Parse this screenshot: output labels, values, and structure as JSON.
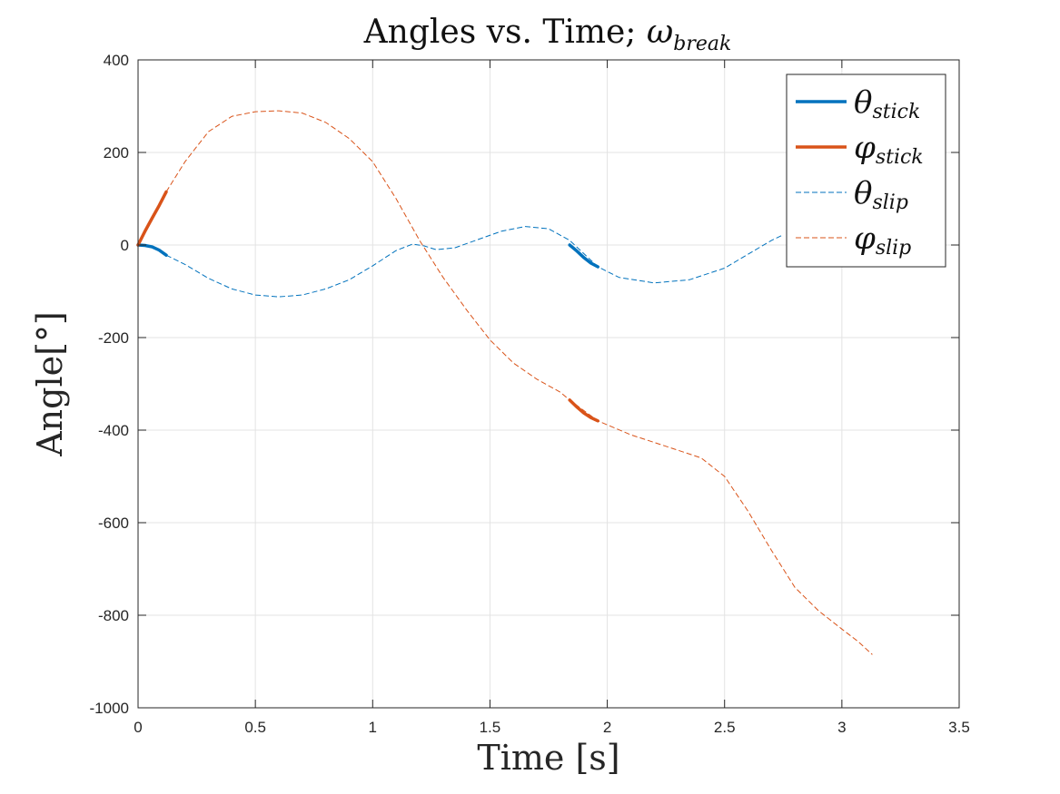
{
  "chart_data": {
    "type": "line",
    "title": "Angles vs. Time; ωbreak",
    "title_parts": {
      "main": "Angles vs. Time; ",
      "sym": "ω",
      "sub": "break"
    },
    "xlabel": "Time [s]",
    "ylabel": "Angle[°]",
    "xlim": [
      0,
      3.5
    ],
    "ylim": [
      -1000,
      400
    ],
    "xticks": [
      0,
      0.5,
      1,
      1.5,
      2,
      2.5,
      3,
      3.5
    ],
    "xtick_labels": [
      "0",
      "0.5",
      "1",
      "1.5",
      "2",
      "2.5",
      "3",
      "3.5"
    ],
    "yticks": [
      -1000,
      -800,
      -600,
      -400,
      -200,
      0,
      200,
      400
    ],
    "ytick_labels": [
      "-1000",
      "-800",
      "-600",
      "-400",
      "-200",
      "0",
      "200",
      "400"
    ],
    "grid": true,
    "legend_position": "top-right",
    "series": [
      {
        "name": "θstick",
        "sym": "θ",
        "sub": "stick",
        "color": "#0072BD",
        "style": "solid",
        "segments": [
          [
            [
              0,
              0
            ],
            [
              0.03,
              -1
            ],
            [
              0.06,
              -4
            ],
            [
              0.09,
              -11
            ],
            [
              0.12,
              -22
            ]
          ],
          [
            [
              1.84,
              0
            ],
            [
              1.87,
              -13
            ],
            [
              1.9,
              -27
            ],
            [
              1.93,
              -39
            ],
            [
              1.96,
              -47
            ]
          ]
        ]
      },
      {
        "name": "φstick",
        "sym": "φ",
        "sub": "stick",
        "color": "#D95319",
        "style": "solid",
        "segments": [
          [
            [
              0,
              0
            ],
            [
              0.03,
              30
            ],
            [
              0.06,
              58
            ],
            [
              0.09,
              85
            ],
            [
              0.12,
              115
            ]
          ],
          [
            [
              1.84,
              -335
            ],
            [
              1.87,
              -350
            ],
            [
              1.9,
              -363
            ],
            [
              1.93,
              -373
            ],
            [
              1.96,
              -380
            ]
          ]
        ]
      },
      {
        "name": "θslip",
        "sym": "θ",
        "sub": "slip",
        "color": "#0072BD",
        "style": "dashed",
        "points": [
          [
            0.12,
            -22
          ],
          [
            0.2,
            -42
          ],
          [
            0.3,
            -72
          ],
          [
            0.4,
            -95
          ],
          [
            0.5,
            -108
          ],
          [
            0.6,
            -112
          ],
          [
            0.7,
            -108
          ],
          [
            0.8,
            -95
          ],
          [
            0.9,
            -75
          ],
          [
            1.0,
            -45
          ],
          [
            1.1,
            -12
          ],
          [
            1.17,
            2
          ],
          [
            1.22,
            -2
          ],
          [
            1.27,
            -10
          ],
          [
            1.35,
            -6
          ],
          [
            1.45,
            12
          ],
          [
            1.55,
            30
          ],
          [
            1.65,
            40
          ],
          [
            1.75,
            35
          ],
          [
            1.84,
            10
          ],
          [
            1.96,
            -47
          ],
          [
            2.05,
            -70
          ],
          [
            2.2,
            -82
          ],
          [
            2.35,
            -75
          ],
          [
            2.5,
            -50
          ],
          [
            2.6,
            -20
          ],
          [
            2.7,
            10
          ],
          [
            2.75,
            22
          ]
        ]
      },
      {
        "name": "φslip",
        "sym": "φ",
        "sub": "slip",
        "color": "#D95319",
        "style": "dashed",
        "points": [
          [
            0.12,
            115
          ],
          [
            0.2,
            180
          ],
          [
            0.3,
            245
          ],
          [
            0.4,
            278
          ],
          [
            0.5,
            288
          ],
          [
            0.6,
            290
          ],
          [
            0.7,
            285
          ],
          [
            0.8,
            265
          ],
          [
            0.9,
            230
          ],
          [
            1.0,
            180
          ],
          [
            1.1,
            100
          ],
          [
            1.2,
            10
          ],
          [
            1.3,
            -70
          ],
          [
            1.4,
            -140
          ],
          [
            1.5,
            -205
          ],
          [
            1.6,
            -255
          ],
          [
            1.7,
            -290
          ],
          [
            1.8,
            -318
          ],
          [
            1.84,
            -335
          ],
          [
            1.96,
            -380
          ],
          [
            2.1,
            -410
          ],
          [
            2.25,
            -435
          ],
          [
            2.4,
            -460
          ],
          [
            2.5,
            -500
          ],
          [
            2.6,
            -575
          ],
          [
            2.7,
            -660
          ],
          [
            2.8,
            -740
          ],
          [
            2.9,
            -790
          ],
          [
            3.0,
            -830
          ],
          [
            3.07,
            -857
          ],
          [
            3.13,
            -885
          ]
        ]
      }
    ]
  }
}
